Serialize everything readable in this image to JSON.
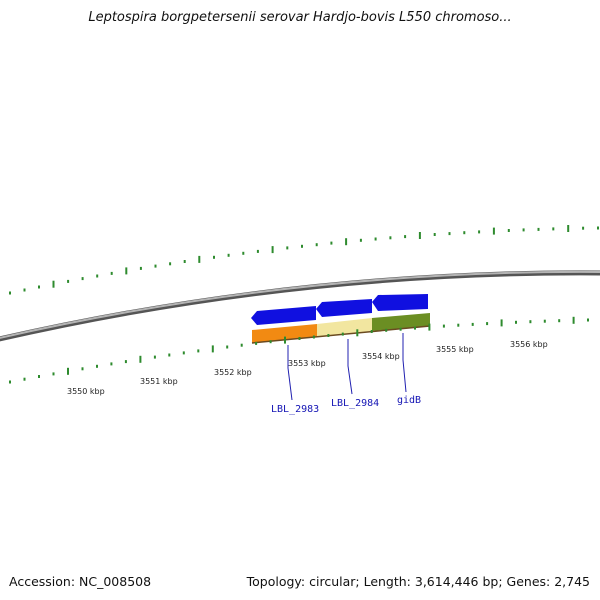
{
  "header": {
    "title": "Leptospira borgpetersenii serovar Hardjo-bovis L550 chromoso..."
  },
  "map": {
    "tick_labels_kbp": [
      3550,
      3551,
      3552,
      3553,
      3554,
      3555,
      3556
    ],
    "tick_unit": "kbp",
    "gene_labels": [
      "LBL_2983",
      "LBL_2984",
      "gidB"
    ]
  },
  "colors": {
    "backbone": "#8c8c8c",
    "tick": "#2e8b2e",
    "gene_forward": "#1010e0",
    "feature_orange": "#f28a12",
    "feature_cream": "#f2e6a0",
    "feature_olive": "#6b8e23",
    "label_line": "#2020b0"
  },
  "footer": {
    "accession": "Accession: NC_008508",
    "summary": "Topology: circular; Length: 3,614,446 bp; Genes: 2,745"
  }
}
